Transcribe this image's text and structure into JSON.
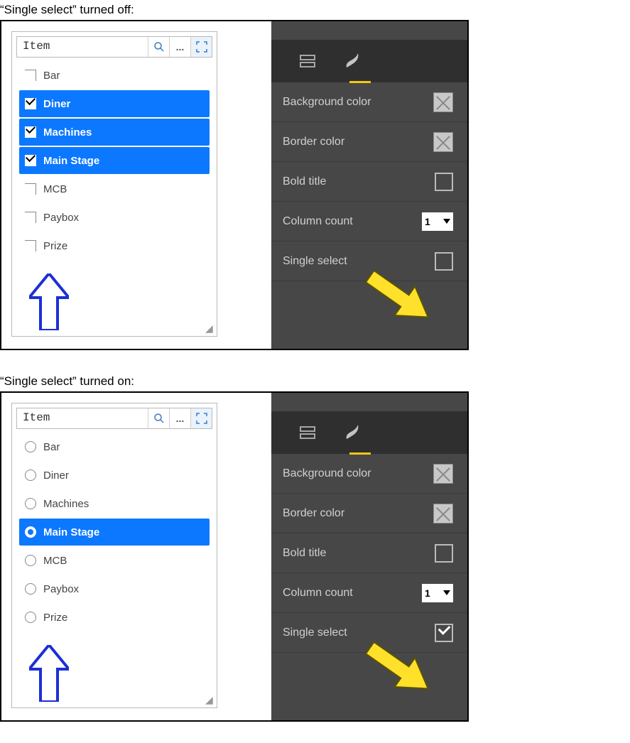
{
  "captions": {
    "off": "“Single select” turned off:",
    "on": "“Single select” turned on:"
  },
  "slicer": {
    "field": "Item",
    "items_off": [
      {
        "label": "Bar",
        "selected": false
      },
      {
        "label": "Diner",
        "selected": true
      },
      {
        "label": "Machines",
        "selected": true
      },
      {
        "label": "Main Stage",
        "selected": true
      },
      {
        "label": "MCB",
        "selected": false
      },
      {
        "label": "Paybox",
        "selected": false
      },
      {
        "label": "Prize",
        "selected": false
      }
    ],
    "items_on": [
      {
        "label": "Bar",
        "selected": false
      },
      {
        "label": "Diner",
        "selected": false
      },
      {
        "label": "Machines",
        "selected": false
      },
      {
        "label": "Main Stage",
        "selected": true
      },
      {
        "label": "MCB",
        "selected": false
      },
      {
        "label": "Paybox",
        "selected": false
      },
      {
        "label": "Prize",
        "selected": false
      }
    ]
  },
  "format": {
    "rows": {
      "bg": "Background color",
      "border": "Border color",
      "bold": "Bold title",
      "count": "Column count",
      "single": "Single select"
    },
    "count_value": "1",
    "bg_color": "#c8c8c8",
    "border_color": "#c8c8c8",
    "bold_on": false,
    "single_off": false,
    "single_on": true
  },
  "colors": {
    "selection": "#0c78ff",
    "pane_bg": "#474747",
    "tab_bg": "#2f2f2f",
    "accent": "#f2c811",
    "arrow_blue": "#1b2fd6",
    "arrow_yellow": "#ffe12b",
    "arrow_yellow_stroke": "#5b5300"
  }
}
